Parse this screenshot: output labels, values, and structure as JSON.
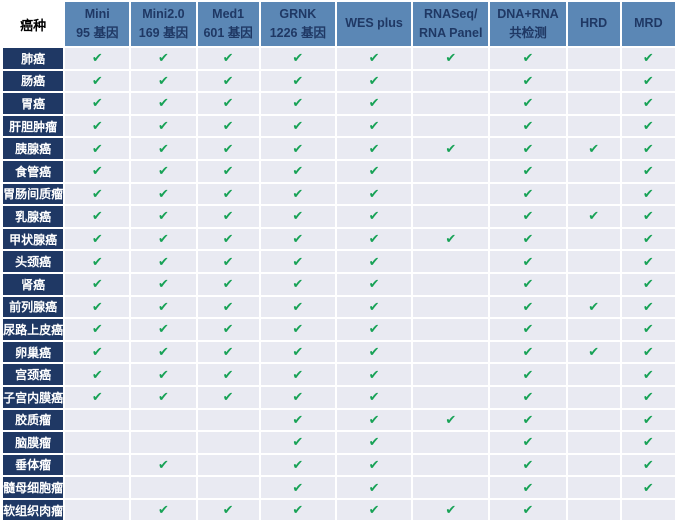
{
  "table": {
    "corner_label": "癌种",
    "check_glyph": "✔",
    "colors": {
      "header_blue": "#5B87B5",
      "row_label_navy": "#1F3864",
      "cell_background": "#E9EAF2",
      "check_green": "#17A256",
      "gridline_white": "#FFFFFF"
    },
    "columns": [
      {
        "id": "mini-95",
        "line1": "Mini",
        "line2": "95 基因"
      },
      {
        "id": "mini2-169",
        "line1": "Mini2.0",
        "line2": "169 基因"
      },
      {
        "id": "med1-601",
        "line1": "Med1",
        "line2": "601 基因"
      },
      {
        "id": "grnk-1226",
        "line1": "GRNK",
        "line2": "1226 基因"
      },
      {
        "id": "wes-plus",
        "line1": "WES plus",
        "line2": ""
      },
      {
        "id": "rnaseq-panel",
        "line1": "RNASeq/",
        "line2": "RNA Panel"
      },
      {
        "id": "dna-rna",
        "line1": "DNA+RNA",
        "line2": "共检测"
      },
      {
        "id": "hrd",
        "line1": "HRD",
        "line2": ""
      },
      {
        "id": "mrd",
        "line1": "MRD",
        "line2": ""
      }
    ],
    "rows": [
      {
        "label": "肺癌",
        "checks": [
          1,
          1,
          1,
          1,
          1,
          1,
          1,
          0,
          1
        ]
      },
      {
        "label": "肠癌",
        "checks": [
          1,
          1,
          1,
          1,
          1,
          0,
          1,
          0,
          1
        ]
      },
      {
        "label": "胃癌",
        "checks": [
          1,
          1,
          1,
          1,
          1,
          0,
          1,
          0,
          1
        ]
      },
      {
        "label": "肝胆肿瘤",
        "checks": [
          1,
          1,
          1,
          1,
          1,
          0,
          1,
          0,
          1
        ]
      },
      {
        "label": "胰腺癌",
        "checks": [
          1,
          1,
          1,
          1,
          1,
          1,
          1,
          1,
          1
        ]
      },
      {
        "label": "食管癌",
        "checks": [
          1,
          1,
          1,
          1,
          1,
          0,
          1,
          0,
          1
        ]
      },
      {
        "label": "胃肠间质瘤",
        "checks": [
          1,
          1,
          1,
          1,
          1,
          0,
          1,
          0,
          1
        ]
      },
      {
        "label": "乳腺癌",
        "checks": [
          1,
          1,
          1,
          1,
          1,
          0,
          1,
          1,
          1
        ]
      },
      {
        "label": "甲状腺癌",
        "checks": [
          1,
          1,
          1,
          1,
          1,
          1,
          1,
          0,
          1
        ]
      },
      {
        "label": "头颈癌",
        "checks": [
          1,
          1,
          1,
          1,
          1,
          0,
          1,
          0,
          1
        ]
      },
      {
        "label": "肾癌",
        "checks": [
          1,
          1,
          1,
          1,
          1,
          0,
          1,
          0,
          1
        ]
      },
      {
        "label": "前列腺癌",
        "checks": [
          1,
          1,
          1,
          1,
          1,
          0,
          1,
          1,
          1
        ]
      },
      {
        "label": "尿路上皮癌",
        "checks": [
          1,
          1,
          1,
          1,
          1,
          0,
          1,
          0,
          1
        ]
      },
      {
        "label": "卵巢癌",
        "checks": [
          1,
          1,
          1,
          1,
          1,
          0,
          1,
          1,
          1
        ]
      },
      {
        "label": "宫颈癌",
        "checks": [
          1,
          1,
          1,
          1,
          1,
          0,
          1,
          0,
          1
        ]
      },
      {
        "label": "子宫内膜癌",
        "checks": [
          1,
          1,
          1,
          1,
          1,
          0,
          1,
          0,
          1
        ]
      },
      {
        "label": "胶质瘤",
        "checks": [
          0,
          0,
          0,
          1,
          1,
          1,
          1,
          0,
          1
        ]
      },
      {
        "label": "脑膜瘤",
        "checks": [
          0,
          0,
          0,
          1,
          1,
          0,
          1,
          0,
          1
        ]
      },
      {
        "label": "垂体瘤",
        "checks": [
          0,
          1,
          0,
          1,
          1,
          0,
          1,
          0,
          1
        ]
      },
      {
        "label": "髓母细胞瘤",
        "checks": [
          0,
          0,
          0,
          1,
          1,
          0,
          1,
          0,
          1
        ]
      },
      {
        "label": "软组织肉瘤",
        "checks": [
          0,
          1,
          1,
          1,
          1,
          1,
          1,
          0,
          0
        ]
      }
    ]
  }
}
